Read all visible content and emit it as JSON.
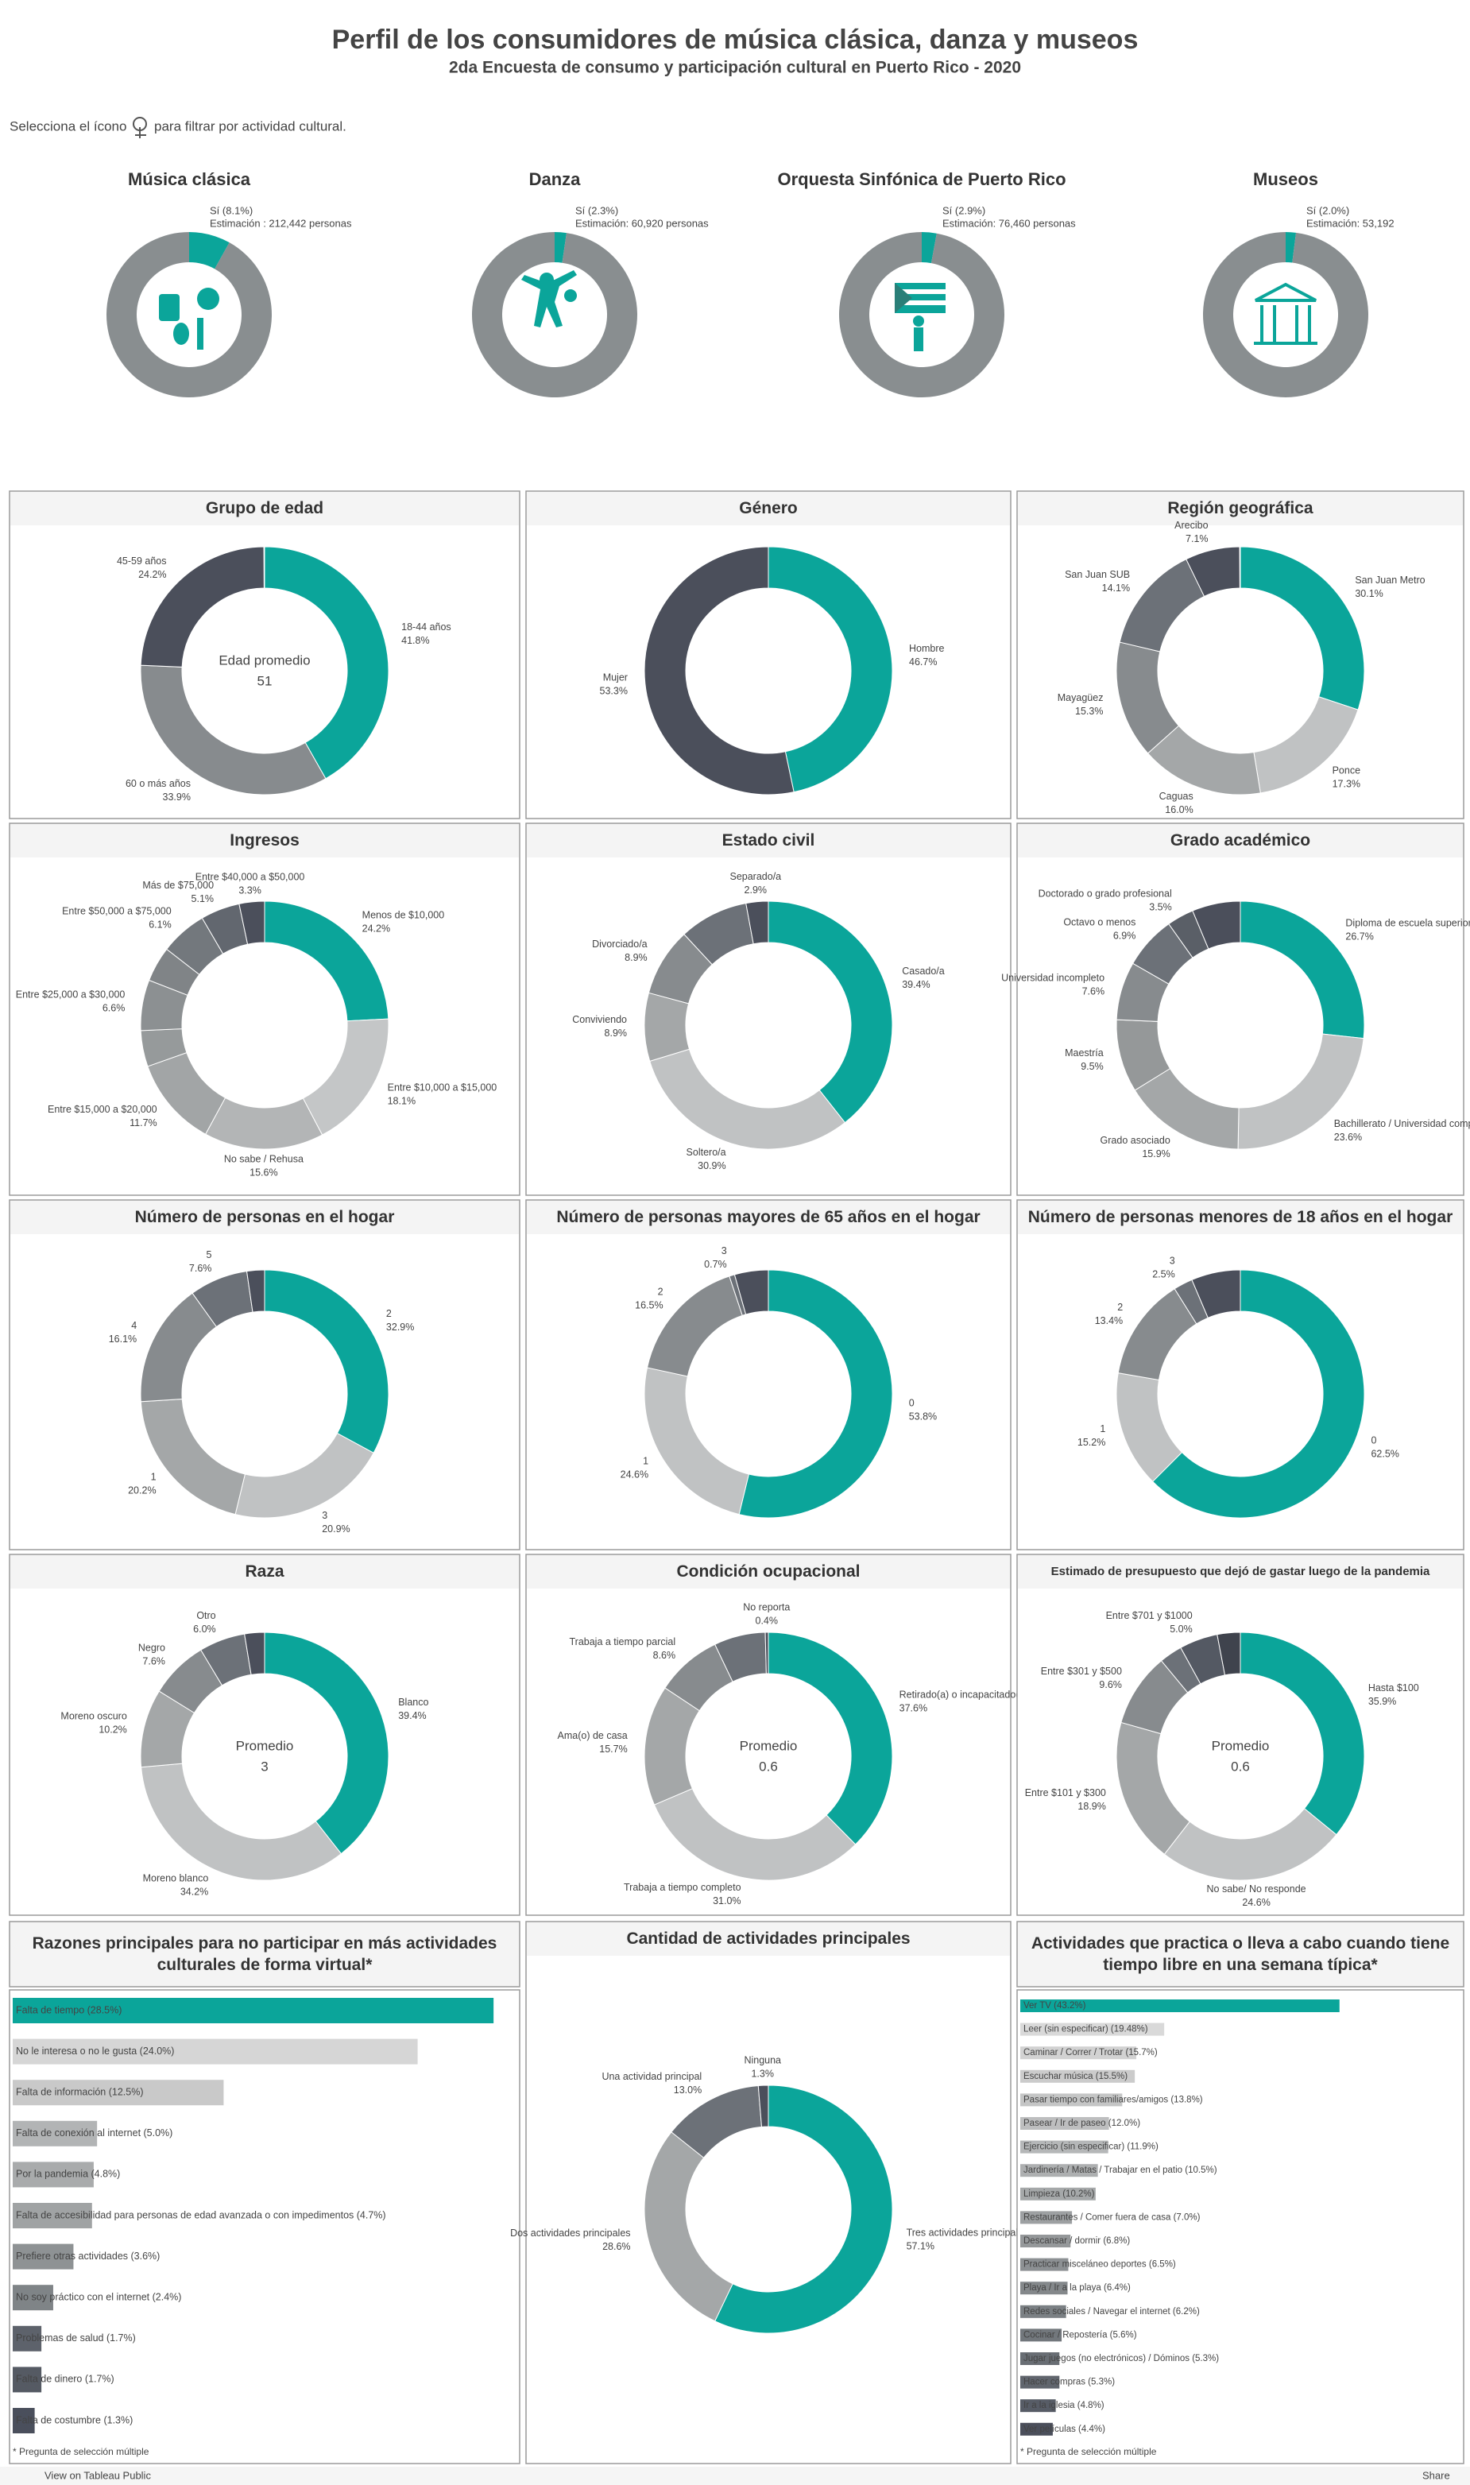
{
  "header": {
    "title": "Perfil de los consumidores de música clásica, danza y museos",
    "subtitle": "2da Encuesta de consumo y participación cultural en Puerto Rico - 2020",
    "instruction_before": "Selecciona el ícono",
    "instruction_after": "para filtrar por actividad cultural."
  },
  "chart_data": [
    {
      "type": "ring",
      "title": "Música clásica",
      "values": [
        8.1,
        91.9
      ],
      "value_labels": [
        "Sí (8.1%)",
        null
      ],
      "annotation": "Estimación : 212,442 personas",
      "colors": [
        "#0ba59a",
        "#898e90"
      ]
    },
    {
      "type": "ring",
      "title": "Danza",
      "values": [
        2.3,
        97.7
      ],
      "value_labels": [
        "Sí (2.3%)",
        null
      ],
      "annotation": "Estimación: 60,920 personas",
      "colors": [
        "#0ba59a",
        "#898e90"
      ]
    },
    {
      "type": "ring",
      "title": "Orquesta Sinfónica de Puerto Rico",
      "values": [
        2.9,
        97.1
      ],
      "value_labels": [
        "Sí (2.9%)",
        null
      ],
      "annotation": "Estimación: 76,460 personas",
      "colors": [
        "#0ba59a",
        "#898e90"
      ]
    },
    {
      "type": "ring",
      "title": "Museos",
      "values": [
        2.0,
        98.0
      ],
      "value_labels": [
        "Sí (2.0%)",
        null
      ],
      "annotation": "Estimación: 53,192",
      "colors": [
        "#0ba59a",
        "#898e90"
      ]
    },
    {
      "type": "donut",
      "title": "Grupo de edad",
      "categories": [
        "18-44 años",
        "60 o más años",
        "45-59 años"
      ],
      "values": [
        41.8,
        33.9,
        24.2
      ],
      "value_labels": [
        "41.8%",
        "33.9%",
        "24.2%"
      ],
      "center_label": "Edad promedio",
      "center_value": 51,
      "colors": [
        "#0ba59a",
        "#878b8e",
        "#4b4f5b"
      ]
    },
    {
      "type": "donut",
      "title": "Género",
      "categories": [
        "Hombre",
        "Mujer"
      ],
      "values": [
        46.7,
        53.3
      ],
      "value_labels": [
        "46.7%",
        "53.3%"
      ],
      "colors": [
        "#0ba59a",
        "#4b4f5b"
      ]
    },
    {
      "type": "donut",
      "title": "Región geográfica",
      "categories": [
        "San Juan Metro",
        "Ponce",
        "Caguas",
        "Mayagüez",
        "San Juan SUB",
        "Arecibo"
      ],
      "values": [
        30.1,
        17.3,
        16.0,
        15.3,
        14.1,
        7.1
      ],
      "value_labels": [
        "30.1%",
        "17.3%",
        "16.0%",
        "15.3%",
        "14.1%",
        "7.1%"
      ],
      "colors": [
        "#0ba59a",
        "#c0c2c3",
        "#a4a7a8",
        "#878b8e",
        "#6c7178",
        "#4b4f5b"
      ]
    },
    {
      "type": "donut",
      "title": "Ingresos",
      "categories": [
        "Menos de $10,000",
        "Entre $10,000 a $15,000",
        "No sabe / Rehusa",
        "Entre $15,000 a $20,000",
        null,
        "Entre $25,000 a $30,000",
        null,
        "Entre $50,000 a $75,000",
        "Más de $75,000",
        "Entre $40,000 a $50,000"
      ],
      "values": [
        24.2,
        18.1,
        15.6,
        11.7,
        4.7,
        6.6,
        4.6,
        6.1,
        5.1,
        3.3
      ],
      "value_labels": [
        "24.2%",
        "18.1%",
        "15.6%",
        "11.7%",
        null,
        "6.6%",
        null,
        "6.1%",
        "5.1%",
        "3.3%"
      ],
      "colors": [
        "#0ba59a",
        "#c4c6c7",
        "#b3b5b6",
        "#a2a5a6",
        "#969a9b",
        "#8c9092",
        "#808487",
        "#73787d",
        "#62676f",
        "#4b4f5b"
      ]
    },
    {
      "type": "donut",
      "title": "Estado civil",
      "categories": [
        "Casado/a",
        "Soltero/a",
        "Conviviendo",
        "Divorciado/a",
        null,
        "Separado/a"
      ],
      "values": [
        39.4,
        30.9,
        8.9,
        8.9,
        9.0,
        2.9
      ],
      "value_labels": [
        "39.4%",
        "30.9%",
        "8.9%",
        "8.9%",
        null,
        "2.9%"
      ],
      "colors": [
        "#0ba59a",
        "#c0c2c3",
        "#a4a7a8",
        "#878b8e",
        "#6c7178",
        "#4b4f5b"
      ]
    },
    {
      "type": "donut",
      "title": "Grado académico",
      "categories": [
        "Diploma de escuela superior",
        "Bachillerato / Universidad completo",
        "Grado asociado",
        "Maestría",
        "Universidad incompleto",
        "Octavo o menos",
        "Doctorado o grado profesional",
        null
      ],
      "values": [
        26.7,
        23.6,
        15.9,
        9.5,
        7.6,
        6.9,
        3.5,
        6.3
      ],
      "value_labels": [
        "26.7%",
        "23.6%",
        "15.9%",
        "9.5%",
        "7.6%",
        "6.9%",
        "3.5%",
        null
      ],
      "colors": [
        "#0ba59a",
        "#c0c2c3",
        "#a4a7a8",
        "#959899",
        "#878b8e",
        "#6c7178",
        "#5a5f67",
        "#4b4f5b"
      ]
    },
    {
      "type": "donut",
      "title": "Número de personas en el hogar",
      "categories": [
        "2",
        "3",
        "1",
        "4",
        "5",
        null
      ],
      "values": [
        32.9,
        20.9,
        20.2,
        16.1,
        7.6,
        2.3
      ],
      "value_labels": [
        "32.9%",
        "20.9%",
        "20.2%",
        "16.1%",
        "7.6%",
        null
      ],
      "colors": [
        "#0ba59a",
        "#c0c2c3",
        "#a4a7a8",
        "#878b8e",
        "#6c7178",
        "#4b4f5b"
      ]
    },
    {
      "type": "donut",
      "title": "Número de personas mayores de 65 años en el hogar",
      "categories": [
        "0",
        "1",
        "2",
        "3",
        null
      ],
      "values": [
        53.8,
        24.6,
        16.5,
        0.7,
        4.4
      ],
      "value_labels": [
        "53.8%",
        "24.6%",
        "16.5%",
        "0.7%",
        null
      ],
      "colors": [
        "#0ba59a",
        "#c0c2c3",
        "#878b8e",
        "#6c7178",
        "#4b4f5b"
      ]
    },
    {
      "type": "donut",
      "title": "Número de personas menores de 18 años en el hogar",
      "categories": [
        "0",
        "1",
        "2",
        "3",
        null
      ],
      "values": [
        62.5,
        15.2,
        13.4,
        2.5,
        6.4
      ],
      "value_labels": [
        "62.5%",
        "15.2%",
        "13.4%",
        "2.5%",
        null
      ],
      "colors": [
        "#0ba59a",
        "#c0c2c3",
        "#878b8e",
        "#6c7178",
        "#4b4f5b"
      ]
    },
    {
      "type": "donut",
      "title": "Raza",
      "categories": [
        "Blanco",
        "Moreno blanco",
        "Moreno oscuro",
        "Negro",
        "Otro",
        null
      ],
      "values": [
        39.4,
        34.2,
        10.2,
        7.6,
        6.0,
        2.6
      ],
      "value_labels": [
        "39.4%",
        "34.2%",
        "10.2%",
        "7.6%",
        "6.0%",
        null
      ],
      "center_label": "Promedio",
      "center_value": 3,
      "colors": [
        "#0ba59a",
        "#c0c2c3",
        "#a4a7a8",
        "#878b8e",
        "#6c7178",
        "#4b4f5b"
      ]
    },
    {
      "type": "donut",
      "title": "Condición ocupacional",
      "categories": [
        "Retirado(a) o incapacitado(a)",
        "Trabaja a tiempo completo",
        "Ama(o) de casa",
        "Trabaja a tiempo parcial",
        null,
        "No reporta"
      ],
      "values": [
        37.6,
        31.0,
        15.7,
        8.6,
        6.7,
        0.4
      ],
      "value_labels": [
        "37.6%",
        "31.0%",
        "15.7%",
        "8.6%",
        null,
        "0.4%"
      ],
      "center_label": "Promedio",
      "center_value": 0.6,
      "colors": [
        "#0ba59a",
        "#c0c2c3",
        "#a4a7a8",
        "#878b8e",
        "#6c7178",
        "#4b4f5b"
      ]
    },
    {
      "type": "donut",
      "title": "Estimado de presupuesto que dejó de gastar luego de la pandemia",
      "categories": [
        "Hasta $100",
        "No sabe/ No responde",
        "Entre $101 y $300",
        "Entre $301 y $500",
        null,
        "Entre $701 y $1000",
        null
      ],
      "values": [
        35.9,
        24.6,
        18.9,
        9.6,
        3.0,
        5.0,
        3.0
      ],
      "value_labels": [
        "35.9%",
        "24.6%",
        "18.9%",
        "9.6%",
        null,
        "5.0%",
        null
      ],
      "center_label": "Promedio",
      "center_value": 0.6,
      "colors": [
        "#0ba59a",
        "#c0c2c3",
        "#a4a7a8",
        "#878b8e",
        "#6c7178",
        "#545963",
        "#3f434d"
      ]
    },
    {
      "type": "hbar",
      "title": "Razones principales para no participar en más actividades culturales de forma virtual*",
      "values": [
        28.5,
        24.0,
        12.5,
        5.0,
        4.8,
        4.7,
        3.6,
        2.4,
        1.7,
        1.7,
        1.3
      ],
      "value_labels": [
        "Falta de tiempo (28.5%)",
        "No le interesa o no le gusta (24.0%)",
        "Falta de información (12.5%)",
        "Falta de conexión al internet (5.0%)",
        "Por la pandemia (4.8%)",
        "Falta de accesibilidad para personas de edad avanzada o con impedimentos (4.7%)",
        "Prefiere otras actividades (3.6%)",
        "No soy práctico con el internet (2.4%)",
        "Problemas de salud (1.7%)",
        "Falta de dinero (1.7%)",
        "Falta de costumbre (1.3%)"
      ],
      "xlim": [
        0,
        29.2
      ],
      "note": "* Pregunta de selección múltiple",
      "colors": [
        "#0ba59a",
        "#d6d6d6",
        "#c9c9c9",
        "#b2b4b5",
        "#a9abac",
        "#a0a3a4",
        "#8e9294",
        "#7f8487",
        "#5d626b",
        "#555a63",
        "#4a4f5c"
      ]
    },
    {
      "type": "donut",
      "title": "Cantidad de actividades principales",
      "categories": [
        "Tres actividades principales",
        "Dos actividades principales",
        "Una actividad principal",
        "Ninguna"
      ],
      "values": [
        57.1,
        28.6,
        13.0,
        1.3
      ],
      "value_labels": [
        "57.1%",
        "28.6%",
        "13.0%",
        "1.3%"
      ],
      "colors": [
        "#0ba59a",
        "#a4a7a8",
        "#6c7178",
        "#4b4f5b"
      ]
    },
    {
      "type": "hbar",
      "title": "Actividades que practica o lleva a cabo cuando tiene tiempo libre en una semana típica*",
      "values": [
        43.2,
        19.48,
        15.7,
        15.5,
        13.8,
        12.0,
        11.9,
        10.5,
        10.2,
        7.0,
        6.8,
        6.5,
        6.4,
        6.2,
        5.6,
        5.3,
        5.3,
        4.8,
        4.4
      ],
      "value_labels": [
        "Ver TV (43.2%)",
        "Leer (sin especificar) (19.48%)",
        "Caminar / Correr / Trotar (15.7%)",
        "Escuchar música (15.5%)",
        "Pasar tiempo con familiares/amigos (13.8%)",
        "Pasear / Ir de paseo (12.0%)",
        "Ejercicio (sin especificar) (11.9%)",
        "Jardinería / Matas / Trabajar en el patio (10.5%)",
        "Limpieza (10.2%)",
        "Restaurantes / Comer fuera de casa (7.0%)",
        "Descansar / dormir (6.8%)",
        "Practicar misceláneo deportes (6.5%)",
        "Playa / Ir a la playa (6.4%)",
        "Redes sociales / Navegar el internet (6.2%)",
        "Cocinar / Repostería (5.6%)",
        "Jugar juegos (no electrónicos) / Dóminos (5.3%)",
        "Hacer compras (5.3%)",
        "Ir a la iglesia (4.8%)",
        "Ver películas (4.4%)"
      ],
      "xlim": [
        0,
        60
      ],
      "note": "* Pregunta de selección múltiple",
      "colors": [
        "#0ba59a",
        "#d9d9d9",
        "#d2d2d2",
        "#cbcbcb",
        "#c4c5c5",
        "#bdbebf",
        "#b5b7b8",
        "#adafb0",
        "#a5a8a9",
        "#9da0a2",
        "#95989a",
        "#8c9093",
        "#84888b",
        "#7b8084",
        "#72777c",
        "#696e74",
        "#60656d",
        "#575c66",
        "#4b4f5b"
      ]
    }
  ],
  "footer": {
    "left": "View on Tableau Public",
    "right": "Share"
  }
}
